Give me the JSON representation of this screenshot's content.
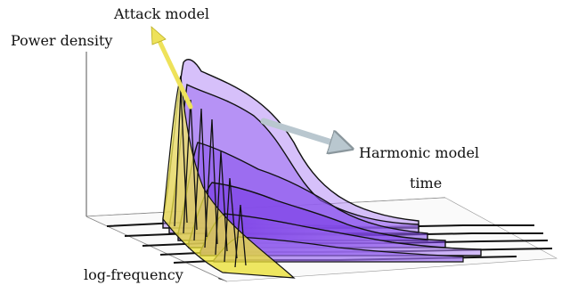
{
  "labels": {
    "attack_model": "Attack model",
    "power_density": "Power density",
    "harmonic_model": "Harmonic model",
    "time": "time",
    "log_frequency": "log-frequency"
  },
  "colors": {
    "attack_fill": "#f2e84a",
    "harmonic_fill": "#a97ff2",
    "harmonic_dark": "#7b3fe6",
    "arrow_yellow": "#eee25a",
    "arrow_gray": "#b9c7cf",
    "outline": "#111111"
  }
}
